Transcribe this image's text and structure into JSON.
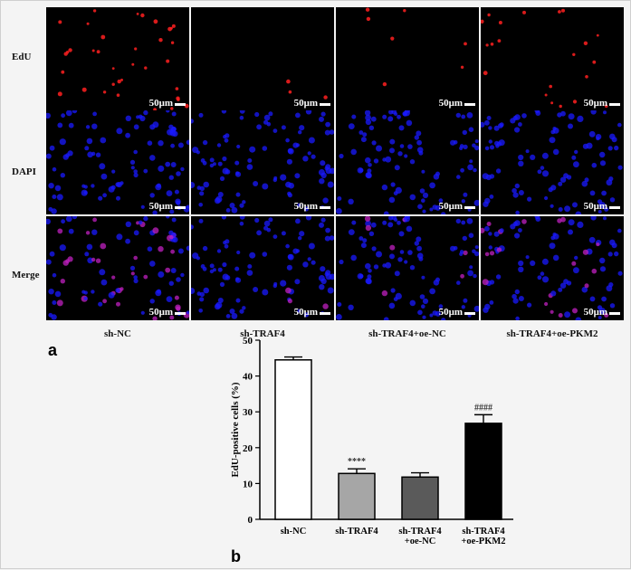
{
  "figure": {
    "panel_a_letter": "a",
    "panel_b_letter": "b",
    "row_labels": [
      "EdU",
      "DAPI",
      "Merge"
    ],
    "column_labels": [
      "sh-NC",
      "sh-TRAF4",
      "sh-TRAF4+oe-NC",
      "sh-TRAF4+oe-PKM2"
    ],
    "scale_bar_label": "50μm",
    "channel_colors": {
      "EdU": "#ff2020",
      "DAPI": "#1a1aff",
      "Merge": "#c020c0",
      "background": "#000000"
    },
    "edu_density": [
      0.9,
      0.35,
      0.3,
      0.75
    ]
  },
  "chart_data": {
    "type": "bar",
    "categories": [
      "sh-NC",
      "sh-TRAF4",
      "sh-TRAF4\n+oe-NC",
      "sh-TRAF4\n+oe-PKM2"
    ],
    "category_lines": [
      [
        "sh-NC"
      ],
      [
        "sh-TRAF4"
      ],
      [
        "sh-TRAF4",
        "+oe-NC"
      ],
      [
        "sh-TRAF4",
        "+oe-PKM2"
      ]
    ],
    "values": [
      44.5,
      12.8,
      11.8,
      26.8
    ],
    "errors": [
      0.8,
      1.3,
      1.2,
      2.4
    ],
    "bar_colors": [
      "#ffffff",
      "#a6a6a6",
      "#5a5a5a",
      "#000000"
    ],
    "annotations": [
      "",
      "****",
      "",
      "####"
    ],
    "ylabel": "EdU-positive cells (%)",
    "xlabel": "",
    "title": "",
    "ylim": [
      0,
      50
    ],
    "yticks": [
      0,
      10,
      20,
      30,
      40,
      50
    ]
  }
}
